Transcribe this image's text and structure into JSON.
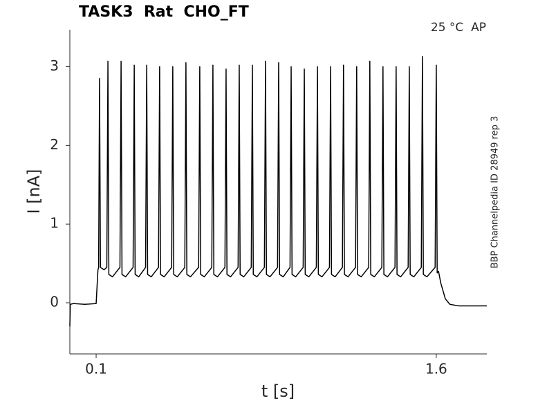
{
  "chart_data": {
    "type": "line",
    "title": "TASK3  Rat  CHO_FT",
    "annotation": "25 °C  AP",
    "side_note": "BBP Channelpedia ID 28949 rep 3",
    "xlabel": "t [s]",
    "ylabel": "I [nA]",
    "xlim": [
      -0.016,
      1.823
    ],
    "ylim": [
      -0.65,
      3.47
    ],
    "xticks": [
      0.1,
      1.6
    ],
    "yticks": [
      0,
      1,
      2,
      3
    ],
    "series": [
      {
        "color": "#000000",
        "x": [
          -0.016,
          -0.014,
          0.0,
          0.05,
          0.1,
          0.108,
          0.111,
          0.115,
          0.119,
          0.135,
          0.147,
          0.152,
          0.156,
          0.172,
          0.205,
          0.21,
          0.214,
          0.23,
          0.263,
          0.268,
          0.272,
          0.288,
          0.318,
          0.323,
          0.327,
          0.343,
          0.375,
          0.38,
          0.384,
          0.4,
          0.433,
          0.438,
          0.442,
          0.458,
          0.491,
          0.496,
          0.5,
          0.516,
          0.552,
          0.557,
          0.561,
          0.577,
          0.61,
          0.615,
          0.619,
          0.635,
          0.668,
          0.673,
          0.677,
          0.693,
          0.726,
          0.731,
          0.735,
          0.751,
          0.784,
          0.789,
          0.793,
          0.809,
          0.842,
          0.847,
          0.851,
          0.867,
          0.9,
          0.905,
          0.909,
          0.925,
          0.955,
          0.96,
          0.964,
          0.98,
          1.013,
          1.018,
          1.022,
          1.038,
          1.071,
          1.076,
          1.08,
          1.096,
          1.129,
          1.134,
          1.138,
          1.154,
          1.186,
          1.191,
          1.195,
          1.211,
          1.244,
          1.249,
          1.253,
          1.269,
          1.302,
          1.307,
          1.311,
          1.327,
          1.36,
          1.365,
          1.369,
          1.385,
          1.418,
          1.423,
          1.427,
          1.443,
          1.476,
          1.481,
          1.485,
          1.501,
          1.534,
          1.539,
          1.543,
          1.559,
          1.595,
          1.6,
          1.604,
          1.61,
          1.62,
          1.64,
          1.66,
          1.7,
          1.823
        ],
        "values": [
          -0.3,
          -0.02,
          -0.01,
          -0.02,
          -0.01,
          0.42,
          0.45,
          2.85,
          0.45,
          0.42,
          0.45,
          3.07,
          0.36,
          0.33,
          0.45,
          3.07,
          0.36,
          0.33,
          0.45,
          3.02,
          0.36,
          0.33,
          0.45,
          3.02,
          0.36,
          0.33,
          0.45,
          3.0,
          0.36,
          0.33,
          0.45,
          3.0,
          0.36,
          0.33,
          0.45,
          3.05,
          0.36,
          0.33,
          0.45,
          3.0,
          0.36,
          0.33,
          0.45,
          3.02,
          0.36,
          0.33,
          0.45,
          2.97,
          0.36,
          0.33,
          0.45,
          3.02,
          0.36,
          0.33,
          0.45,
          3.02,
          0.36,
          0.33,
          0.45,
          3.07,
          0.36,
          0.33,
          0.45,
          3.05,
          0.36,
          0.33,
          0.45,
          3.0,
          0.36,
          0.33,
          0.45,
          2.97,
          0.36,
          0.33,
          0.45,
          3.0,
          0.36,
          0.33,
          0.45,
          3.0,
          0.36,
          0.33,
          0.45,
          3.02,
          0.36,
          0.33,
          0.45,
          3.0,
          0.36,
          0.33,
          0.45,
          3.07,
          0.36,
          0.33,
          0.45,
          3.0,
          0.36,
          0.33,
          0.45,
          3.0,
          0.36,
          0.33,
          0.45,
          3.0,
          0.36,
          0.33,
          0.45,
          3.13,
          0.36,
          0.33,
          0.45,
          3.02,
          0.38,
          0.4,
          0.25,
          0.05,
          -0.02,
          -0.04,
          -0.04
        ]
      }
    ]
  }
}
